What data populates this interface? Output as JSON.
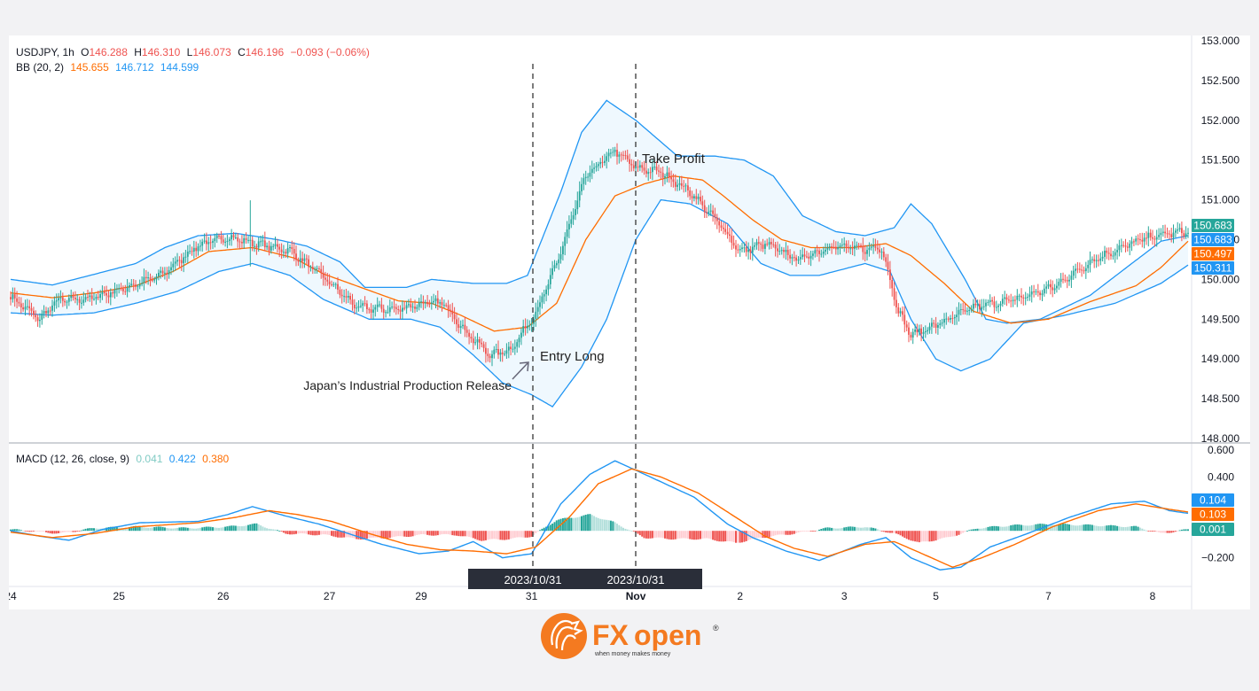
{
  "legend": {
    "symbol": "USDJPY, 1h",
    "o_label": "O",
    "o": "146.288",
    "h_label": "H",
    "h": "146.310",
    "l_label": "L",
    "l": "146.073",
    "c_label": "C",
    "c": "146.196",
    "change": "−0.093 (−0.06%)",
    "bb_label": "BB (20, 2)",
    "bb_values": [
      "145.655",
      "146.712",
      "144.599"
    ],
    "macd_label": "MACD (12, 26, close, 9)",
    "macd_values": [
      "0.041",
      "0.422",
      "0.380"
    ]
  },
  "annotations": {
    "entry": "Entry Long",
    "release": "Japan’s Industrial Production Release",
    "take_profit": "Take Profit",
    "date_tags": [
      "2023/10/31",
      "2023/10/31"
    ]
  },
  "price_tags": [
    "150.683",
    "150.683",
    "150.497",
    "150.311"
  ],
  "macd_tags": [
    "0.104",
    "0.103",
    "0.001"
  ],
  "colors": {
    "up": "#26a69a",
    "down": "#ef5350",
    "band": "#2196f3",
    "basis": "#ff6d00",
    "macd": "#2196f3",
    "signal": "#ff6d00",
    "hist_up": "#26a69a",
    "hist_up_fade": "#b2dfdb",
    "hist_down": "#ef5350",
    "hist_down_fade": "#ffcdd2",
    "tag_green": "#26a69a",
    "tag_blue": "#2196f3",
    "tag_orange": "#ff6d00"
  },
  "brand": {
    "name_fx": "FX",
    "name_open": "open",
    "tagline": "when money makes money",
    "registered": "®"
  },
  "chart_data": [
    {
      "type": "candlestick",
      "title": "USDJPY, 1h",
      "x_tick_labels": [
        "24",
        "25",
        "26",
        "27",
        "29",
        "31",
        "Nov",
        "2",
        "3",
        "5",
        "7",
        "8"
      ],
      "y_ticks": [
        "153.000",
        "152.500",
        "152.000",
        "151.500",
        "151.000",
        "150.500",
        "150.000",
        "149.500",
        "149.000",
        "148.500",
        "148.000"
      ],
      "ylim": [
        148.0,
        153.0
      ],
      "anchor_closes": [
        [
          0,
          149.78
        ],
        [
          14,
          149.5
        ],
        [
          22,
          149.73
        ],
        [
          38,
          149.76
        ],
        [
          56,
          149.9
        ],
        [
          72,
          150.05
        ],
        [
          90,
          150.43
        ],
        [
          104,
          150.53
        ],
        [
          118,
          150.45
        ],
        [
          134,
          150.36
        ],
        [
          148,
          150.08
        ],
        [
          166,
          149.65
        ],
        [
          184,
          149.62
        ],
        [
          198,
          149.7
        ],
        [
          208,
          149.7
        ],
        [
          218,
          149.35
        ],
        [
          230,
          149.05
        ],
        [
          240,
          149.12
        ],
        [
          252,
          149.58
        ],
        [
          262,
          150.2
        ],
        [
          276,
          151.3
        ],
        [
          290,
          151.62
        ],
        [
          300,
          151.4
        ],
        [
          312,
          151.35
        ],
        [
          326,
          151.1
        ],
        [
          340,
          150.7
        ],
        [
          350,
          150.35
        ],
        [
          362,
          150.45
        ],
        [
          378,
          150.25
        ],
        [
          394,
          150.42
        ],
        [
          410,
          150.38
        ],
        [
          418,
          150.4
        ],
        [
          426,
          149.6
        ],
        [
          432,
          149.3
        ],
        [
          446,
          149.45
        ],
        [
          462,
          149.65
        ],
        [
          482,
          149.75
        ],
        [
          500,
          149.9
        ],
        [
          520,
          150.25
        ],
        [
          542,
          150.5
        ],
        [
          556,
          150.58
        ],
        [
          565,
          150.6
        ]
      ],
      "bb_upper_anchors": [
        [
          0,
          150
        ],
        [
          20,
          149.93
        ],
        [
          38,
          150.05
        ],
        [
          60,
          150.2
        ],
        [
          74,
          150.4
        ],
        [
          90,
          150.55
        ],
        [
          108,
          150.58
        ],
        [
          128,
          150.5
        ],
        [
          142,
          150.42
        ],
        [
          158,
          150.22
        ],
        [
          170,
          149.9
        ],
        [
          190,
          149.9
        ],
        [
          202,
          150.0
        ],
        [
          222,
          149.95
        ],
        [
          238,
          149.95
        ],
        [
          248,
          150.05
        ],
        [
          264,
          151.1
        ],
        [
          274,
          151.85
        ],
        [
          286,
          152.25
        ],
        [
          300,
          152.0
        ],
        [
          320,
          151.55
        ],
        [
          338,
          151.55
        ],
        [
          352,
          151.5
        ],
        [
          366,
          151.3
        ],
        [
          380,
          150.8
        ],
        [
          396,
          150.6
        ],
        [
          410,
          150.55
        ],
        [
          424,
          150.65
        ],
        [
          432,
          150.95
        ],
        [
          442,
          150.7
        ],
        [
          458,
          150.0
        ],
        [
          468,
          149.5
        ],
        [
          478,
          149.45
        ],
        [
          494,
          149.5
        ],
        [
          518,
          149.8
        ],
        [
          538,
          150.2
        ],
        [
          552,
          150.48
        ],
        [
          565,
          150.55
        ]
      ],
      "bb_basis_anchors": [
        [
          0,
          149.83
        ],
        [
          20,
          149.77
        ],
        [
          40,
          149.83
        ],
        [
          60,
          149.92
        ],
        [
          78,
          150.1
        ],
        [
          95,
          150.35
        ],
        [
          116,
          150.4
        ],
        [
          136,
          150.27
        ],
        [
          150,
          150.07
        ],
        [
          168,
          149.9
        ],
        [
          186,
          149.73
        ],
        [
          202,
          149.7
        ],
        [
          216,
          149.55
        ],
        [
          232,
          149.35
        ],
        [
          248,
          149.4
        ],
        [
          262,
          149.7
        ],
        [
          276,
          150.5
        ],
        [
          290,
          151.05
        ],
        [
          304,
          151.2
        ],
        [
          318,
          151.3
        ],
        [
          332,
          151.25
        ],
        [
          342,
          151.05
        ],
        [
          356,
          150.75
        ],
        [
          370,
          150.5
        ],
        [
          384,
          150.4
        ],
        [
          404,
          150.4
        ],
        [
          420,
          150.45
        ],
        [
          432,
          150.3
        ],
        [
          448,
          149.95
        ],
        [
          462,
          149.6
        ],
        [
          480,
          149.45
        ],
        [
          498,
          149.5
        ],
        [
          518,
          149.72
        ],
        [
          540,
          149.92
        ],
        [
          552,
          150.15
        ],
        [
          565,
          150.48
        ]
      ],
      "bb_lower_anchors": [
        [
          0,
          149.58
        ],
        [
          20,
          149.55
        ],
        [
          40,
          149.58
        ],
        [
          60,
          149.7
        ],
        [
          80,
          149.85
        ],
        [
          100,
          150.1
        ],
        [
          116,
          150.2
        ],
        [
          134,
          150.05
        ],
        [
          150,
          149.75
        ],
        [
          172,
          149.5
        ],
        [
          192,
          149.5
        ],
        [
          206,
          149.4
        ],
        [
          222,
          149.05
        ],
        [
          236,
          148.7
        ],
        [
          250,
          148.55
        ],
        [
          260,
          148.4
        ],
        [
          274,
          148.9
        ],
        [
          286,
          149.5
        ],
        [
          300,
          150.5
        ],
        [
          312,
          151.0
        ],
        [
          326,
          150.95
        ],
        [
          344,
          150.7
        ],
        [
          360,
          150.2
        ],
        [
          374,
          150.05
        ],
        [
          388,
          150.05
        ],
        [
          410,
          150.2
        ],
        [
          422,
          150.1
        ],
        [
          432,
          149.5
        ],
        [
          444,
          149.0
        ],
        [
          456,
          148.85
        ],
        [
          470,
          149.0
        ],
        [
          486,
          149.45
        ],
        [
          506,
          149.55
        ],
        [
          530,
          149.7
        ],
        [
          552,
          149.95
        ],
        [
          565,
          150.18
        ]
      ]
    },
    {
      "type": "line",
      "title": "MACD (12, 26, close, 9)",
      "y_ticks": [
        "0.600",
        "0.400",
        "−0.200"
      ],
      "ylim": [
        -0.38,
        0.62
      ],
      "series": [
        {
          "name": "MACD",
          "anchors": [
            [
              0,
              0
            ],
            [
              14,
              -0.04
            ],
            [
              28,
              -0.07
            ],
            [
              44,
              0.01
            ],
            [
              62,
              0.06
            ],
            [
              90,
              0.07
            ],
            [
              104,
              0.12
            ],
            [
              116,
              0.18
            ],
            [
              132,
              0.11
            ],
            [
              148,
              0.05
            ],
            [
              162,
              -0.02
            ],
            [
              178,
              -0.1
            ],
            [
              196,
              -0.17
            ],
            [
              210,
              -0.15
            ],
            [
              222,
              -0.08
            ],
            [
              236,
              -0.2
            ],
            [
              250,
              -0.17
            ],
            [
              264,
              0.2
            ],
            [
              278,
              0.42
            ],
            [
              290,
              0.52
            ],
            [
              300,
              0.45
            ],
            [
              314,
              0.35
            ],
            [
              328,
              0.25
            ],
            [
              344,
              0.05
            ],
            [
              356,
              -0.05
            ],
            [
              372,
              -0.15
            ],
            [
              388,
              -0.22
            ],
            [
              408,
              -0.1
            ],
            [
              420,
              -0.05
            ],
            [
              432,
              -0.2
            ],
            [
              446,
              -0.29
            ],
            [
              456,
              -0.27
            ],
            [
              470,
              -0.12
            ],
            [
              488,
              -0.02
            ],
            [
              508,
              0.1
            ],
            [
              528,
              0.2
            ],
            [
              544,
              0.22
            ],
            [
              556,
              0.15
            ],
            [
              565,
              0.13
            ]
          ]
        },
        {
          "name": "Signal",
          "anchors": [
            [
              0,
              -0.01
            ],
            [
              20,
              -0.05
            ],
            [
              40,
              -0.02
            ],
            [
              60,
              0.03
            ],
            [
              90,
              0.06
            ],
            [
              108,
              0.1
            ],
            [
              124,
              0.15
            ],
            [
              138,
              0.12
            ],
            [
              154,
              0.07
            ],
            [
              172,
              -0.02
            ],
            [
              190,
              -0.1
            ],
            [
              206,
              -0.14
            ],
            [
              222,
              -0.15
            ],
            [
              238,
              -0.17
            ],
            [
              252,
              -0.12
            ],
            [
              268,
              0.1
            ],
            [
              282,
              0.35
            ],
            [
              298,
              0.46
            ],
            [
              312,
              0.4
            ],
            [
              330,
              0.28
            ],
            [
              346,
              0.12
            ],
            [
              362,
              -0.04
            ],
            [
              376,
              -0.13
            ],
            [
              392,
              -0.19
            ],
            [
              410,
              -0.1
            ],
            [
              424,
              -0.08
            ],
            [
              436,
              -0.16
            ],
            [
              452,
              -0.27
            ],
            [
              466,
              -0.2
            ],
            [
              482,
              -0.1
            ],
            [
              500,
              0.03
            ],
            [
              522,
              0.15
            ],
            [
              540,
              0.2
            ],
            [
              556,
              0.16
            ],
            [
              565,
              0.14
            ]
          ]
        },
        {
          "name": "Histogram",
          "anchors": [
            [
              0,
              0.01
            ],
            [
              24,
              -0.02
            ],
            [
              40,
              0.02
            ],
            [
              60,
              0.03
            ],
            [
              84,
              0.02
            ],
            [
              104,
              0.03
            ],
            [
              118,
              0.05
            ],
            [
              132,
              -0.02
            ],
            [
              150,
              -0.03
            ],
            [
              166,
              -0.06
            ],
            [
              182,
              -0.05
            ],
            [
              198,
              -0.03
            ],
            [
              214,
              -0.03
            ],
            [
              226,
              -0.07
            ],
            [
              240,
              -0.06
            ],
            [
              250,
              -0.04
            ],
            [
              262,
              0.08
            ],
            [
              278,
              0.12
            ],
            [
              290,
              0.06
            ],
            [
              304,
              -0.05
            ],
            [
              318,
              -0.06
            ],
            [
              334,
              -0.06
            ],
            [
              348,
              -0.09
            ],
            [
              360,
              -0.05
            ],
            [
              376,
              -0.02
            ],
            [
              392,
              0.02
            ],
            [
              410,
              0.03
            ],
            [
              424,
              -0.02
            ],
            [
              436,
              -0.09
            ],
            [
              450,
              -0.05
            ],
            [
              464,
              0.02
            ],
            [
              480,
              0.04
            ],
            [
              500,
              0.05
            ],
            [
              522,
              0.04
            ],
            [
              540,
              0.03
            ],
            [
              552,
              -0.02
            ],
            [
              565,
              0.01
            ]
          ]
        }
      ]
    }
  ]
}
